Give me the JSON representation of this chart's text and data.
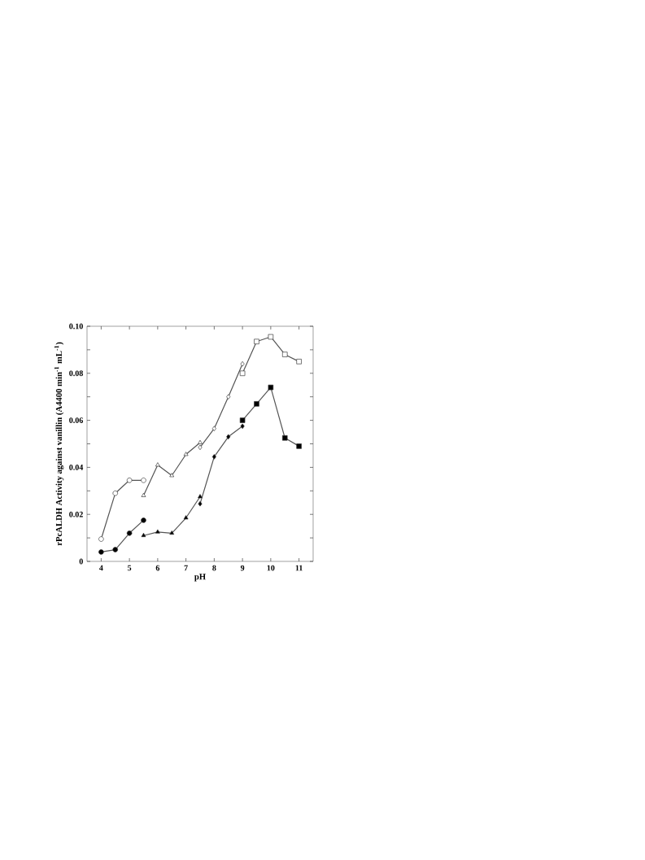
{
  "chart_data": {
    "type": "line",
    "xlabel": "pH",
    "ylabel": "rPcALDH Activity against vanillin (A4400 min$^{-1}$ mL$^{-1}$)",
    "xlim": [
      3.5,
      11.5
    ],
    "ylim": [
      0,
      0.1
    ],
    "xticks": [
      4,
      5,
      6,
      7,
      8,
      9,
      10,
      11
    ],
    "yticks": [
      0,
      {
        "value": 0.01,
        "label": null
      },
      0.02,
      {
        "value": 0.03,
        "label": null
      },
      0.04,
      {
        "value": 0.05,
        "label": null
      },
      0.06,
      {
        "value": 0.07,
        "label": null
      },
      0.08,
      {
        "value": 0.09,
        "label": null
      },
      {
        "value": 0.1,
        "label": "0.10"
      }
    ],
    "grid": false,
    "line_style": "solid",
    "series": [
      {
        "color": "#ffffff",
        "marker": "circle",
        "x": [
          4,
          4.5,
          5,
          5.5
        ],
        "values": [
          0.0095,
          0.029,
          0.0345,
          0.0345
        ]
      },
      {
        "color": "#000000",
        "marker": "circle",
        "x": [
          4,
          4.5,
          5,
          5.5
        ],
        "values": [
          0.004,
          0.005,
          0.012,
          0.0175
        ]
      },
      {
        "color": "#ffffff",
        "marker": "triangle",
        "x": [
          5.5,
          6,
          6.5,
          7,
          7.5
        ],
        "values": [
          0.028,
          0.041,
          0.0365,
          0.0455,
          0.0505
        ]
      },
      {
        "color": "#000000",
        "marker": "triangle",
        "x": [
          5.5,
          6,
          6.5,
          7,
          7.5
        ],
        "values": [
          0.011,
          0.0125,
          0.012,
          0.0185,
          0.0275
        ]
      },
      {
        "color": "#ffffff",
        "marker": "diamond",
        "x": [
          7.5,
          8,
          8.5,
          9
        ],
        "values": [
          0.0485,
          0.0565,
          0.07,
          0.084
        ]
      },
      {
        "color": "#000000",
        "marker": "diamond",
        "x": [
          7.5,
          8,
          8.5,
          9
        ],
        "values": [
          0.0245,
          0.0445,
          0.053,
          0.0575
        ]
      },
      {
        "color": "#ffffff",
        "marker": "square",
        "x": [
          9,
          9.5,
          10,
          10.5,
          11
        ],
        "values": [
          0.08,
          0.0935,
          0.0955,
          0.088,
          0.085
        ]
      },
      {
        "color": "#000000",
        "marker": "square",
        "x": [
          9,
          9.5,
          10,
          10.5,
          11
        ],
        "values": [
          0.06,
          0.067,
          0.074,
          0.0525,
          0.049
        ]
      }
    ]
  }
}
